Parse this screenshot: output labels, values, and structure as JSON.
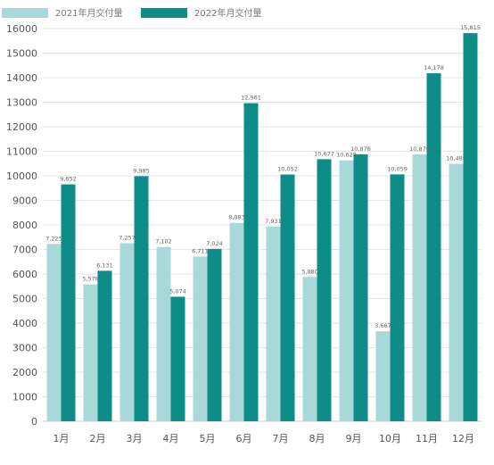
{
  "chart_data": {
    "type": "bar",
    "categories": [
      "1月",
      "2月",
      "3月",
      "4月",
      "5月",
      "6月",
      "7月",
      "8月",
      "9月",
      "10月",
      "11月",
      "12月"
    ],
    "series": [
      {
        "name": "2021年月交付量",
        "color": "#a8d8d8",
        "values": [
          7225,
          5578,
          7257,
          7102,
          6711,
          8083,
          7931,
          5880,
          10628,
          3667,
          10878,
          10489
        ],
        "labels": [
          "7,225",
          "5,578",
          "7,257",
          "7,102",
          "6,711",
          "8,083",
          "7,931",
          "5,880",
          "10,628",
          "3,667",
          "10,878",
          "10,489"
        ]
      },
      {
        "name": "2022年月交付量",
        "color": "#0e8c88",
        "values": [
          9652,
          6131,
          9985,
          5074,
          7024,
          12961,
          10052,
          10677,
          10878,
          10059,
          14178,
          15815
        ],
        "labels": [
          "9,652",
          "6,131",
          "9,985",
          "5,074",
          "7,024",
          "12,961",
          "10,052",
          "10,677",
          "10,878",
          "10,059",
          "14,178",
          "15,815"
        ]
      }
    ],
    "ylim": [
      0,
      16000
    ],
    "yticks": [
      "0",
      "1000",
      "2000",
      "3000",
      "4000",
      "5000",
      "6000",
      "7000",
      "8000",
      "9000",
      "10000",
      "11000",
      "12000",
      "13000",
      "14000",
      "15000",
      "16000"
    ],
    "legend": "top-left",
    "grid": true
  }
}
